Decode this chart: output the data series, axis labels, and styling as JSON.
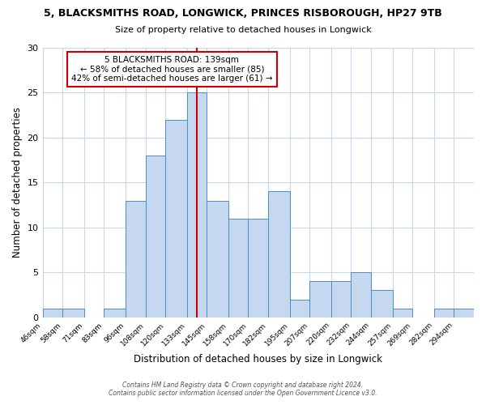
{
  "title1": "5, BLACKSMITHS ROAD, LONGWICK, PRINCES RISBOROUGH, HP27 9TB",
  "title2": "Size of property relative to detached houses in Longwick",
  "xlabel": "Distribution of detached houses by size in Longwick",
  "ylabel": "Number of detached properties",
  "bar_labels": [
    "46sqm",
    "58sqm",
    "71sqm",
    "83sqm",
    "96sqm",
    "108sqm",
    "120sqm",
    "133sqm",
    "145sqm",
    "158sqm",
    "170sqm",
    "182sqm",
    "195sqm",
    "207sqm",
    "220sqm",
    "232sqm",
    "244sqm",
    "257sqm",
    "269sqm",
    "282sqm",
    "294sqm"
  ],
  "bar_values": [
    1,
    1,
    0,
    1,
    13,
    18,
    22,
    25,
    13,
    11,
    11,
    14,
    2,
    4,
    4,
    5,
    3,
    1,
    0,
    1,
    1
  ],
  "bar_edges": [
    46,
    58,
    71,
    83,
    96,
    108,
    120,
    133,
    145,
    158,
    170,
    182,
    195,
    207,
    220,
    232,
    244,
    257,
    269,
    282,
    294,
    306
  ],
  "bar_color": "#c5d8f0",
  "bar_edge_color": "#4a90c4",
  "property_line_x": 139,
  "property_line_color": "#cc0000",
  "annotation_title": "5 BLACKSMITHS ROAD: 139sqm",
  "annotation_line1": "← 58% of detached houses are smaller (85)",
  "annotation_line2": "42% of semi-detached houses are larger (61) →",
  "annotation_box_color": "#cc0000",
  "ylim": [
    0,
    30
  ],
  "yticks": [
    0,
    5,
    10,
    15,
    20,
    25,
    30
  ],
  "background_color": "#ffffff",
  "grid_color": "#c8d8e8",
  "footer1": "Contains HM Land Registry data © Crown copyright and database right 2024.",
  "footer2": "Contains public sector information licensed under the Open Government Licence v3.0."
}
